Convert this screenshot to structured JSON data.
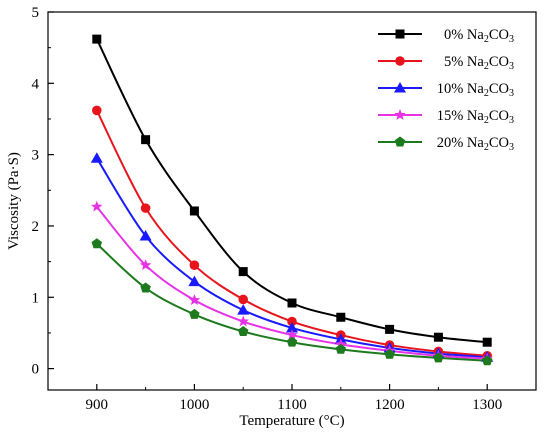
{
  "chart_data": {
    "type": "line",
    "title": "",
    "xlabel": "Temperature (°C)",
    "ylabel": "Viscosity (Pa·S)",
    "xlim": [
      850,
      1350
    ],
    "ylim": [
      -0.3,
      5
    ],
    "xticks": [
      900,
      1000,
      1100,
      1200,
      1300
    ],
    "yticks": [
      0,
      1,
      2,
      3,
      4,
      5
    ],
    "grid": false,
    "legend_position": "top-right",
    "x": [
      900,
      950,
      1000,
      1050,
      1100,
      1150,
      1200,
      1250,
      1300
    ],
    "series": [
      {
        "name": "0% Na2CO3",
        "label_pct": "0%",
        "label_chem": "Na",
        "label_sub1": "2",
        "label_chem2": "CO",
        "label_sub2": "3",
        "color": "#000000",
        "marker": "square",
        "values": [
          4.62,
          3.21,
          2.21,
          1.36,
          0.92,
          0.72,
          0.55,
          0.44,
          0.37
        ]
      },
      {
        "name": "5% Na2CO3",
        "label_pct": "5%",
        "label_chem": "Na",
        "label_sub1": "2",
        "label_chem2": "CO",
        "label_sub2": "3",
        "color": "#e8141c",
        "marker": "circle",
        "values": [
          3.62,
          2.25,
          1.45,
          0.97,
          0.66,
          0.47,
          0.33,
          0.24,
          0.18
        ]
      },
      {
        "name": "10% Na2CO3",
        "label_pct": "10%",
        "label_chem": "Na",
        "label_sub1": "2",
        "label_chem2": "CO",
        "label_sub2": "3",
        "color": "#1a1aff",
        "marker": "triangle",
        "values": [
          2.95,
          1.86,
          1.22,
          0.82,
          0.57,
          0.41,
          0.29,
          0.21,
          0.16
        ]
      },
      {
        "name": "15% Na2CO3",
        "label_pct": "15%",
        "label_chem": "Na",
        "label_sub1": "2",
        "label_chem2": "CO",
        "label_sub2": "3",
        "color": "#e633e6",
        "marker": "star",
        "values": [
          2.27,
          1.45,
          0.96,
          0.66,
          0.47,
          0.34,
          0.25,
          0.18,
          0.14
        ]
      },
      {
        "name": "20% Na2CO3",
        "label_pct": "20%",
        "label_chem": "Na",
        "label_sub1": "2",
        "label_chem2": "CO",
        "label_sub2": "3",
        "color": "#1e7a1e",
        "marker": "pentagon",
        "values": [
          1.75,
          1.13,
          0.76,
          0.52,
          0.37,
          0.27,
          0.2,
          0.15,
          0.11
        ]
      }
    ]
  }
}
